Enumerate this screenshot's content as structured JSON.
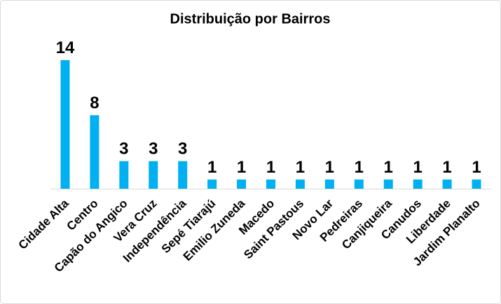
{
  "chart_data": {
    "type": "bar",
    "title": "Distribuição por Bairros",
    "categories": [
      "Cidade Alta",
      "Centro",
      "Capão do Angico",
      "Vera Cruz",
      "Independência",
      "Sepé Tiarajú",
      "Emilio Zuneda",
      "Macedo",
      "Saint Pastous",
      "Novo Lar",
      "Pedreiras",
      "Canjiqueira",
      "Canudos",
      "Liberdade",
      "Jardim Planalto"
    ],
    "values": [
      14,
      8,
      3,
      3,
      3,
      1,
      1,
      1,
      1,
      1,
      1,
      1,
      1,
      1,
      1
    ],
    "color": "#00b0f0"
  }
}
